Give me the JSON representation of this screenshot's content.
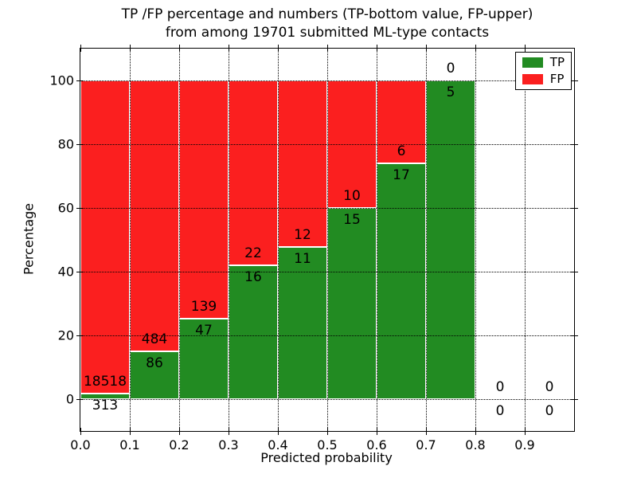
{
  "chart_data": {
    "type": "bar",
    "stacked": true,
    "title_line1": "TP /FP percentage and numbers (TP-bottom value, FP-upper)",
    "title_line2": "from among 19701 submitted ML-type contacts",
    "total_contacts": 19701,
    "xlabel": "Predicted probability",
    "ylabel": "Percentage",
    "x_ticks": [
      "0.0",
      "0.1",
      "0.2",
      "0.3",
      "0.4",
      "0.5",
      "0.6",
      "0.7",
      "0.8",
      "0.9"
    ],
    "y_ticks": [
      0,
      20,
      40,
      60,
      80,
      100
    ],
    "xlim": [
      0.0,
      1.0
    ],
    "ylim": [
      -10,
      110
    ],
    "grid_style": "dotted",
    "legend_position": "upper right",
    "legend": [
      {
        "label": "TP",
        "color": "#228b22"
      },
      {
        "label": "FP",
        "color": "#fb1f1f"
      }
    ],
    "bins": [
      {
        "x_start": 0.0,
        "x_end": 0.1,
        "tp": 313,
        "fp": 18518,
        "tp_pct": 1.66
      },
      {
        "x_start": 0.1,
        "x_end": 0.2,
        "tp": 86,
        "fp": 484,
        "tp_pct": 15.09
      },
      {
        "x_start": 0.2,
        "x_end": 0.3,
        "tp": 47,
        "fp": 139,
        "tp_pct": 25.27
      },
      {
        "x_start": 0.3,
        "x_end": 0.4,
        "tp": 16,
        "fp": 22,
        "tp_pct": 42.11
      },
      {
        "x_start": 0.4,
        "x_end": 0.5,
        "tp": 11,
        "fp": 12,
        "tp_pct": 47.83
      },
      {
        "x_start": 0.5,
        "x_end": 0.6,
        "tp": 15,
        "fp": 10,
        "tp_pct": 60.0
      },
      {
        "x_start": 0.6,
        "x_end": 0.7,
        "tp": 17,
        "fp": 6,
        "tp_pct": 73.91
      },
      {
        "x_start": 0.7,
        "x_end": 0.8,
        "tp": 5,
        "fp": 0,
        "tp_pct": 100.0
      },
      {
        "x_start": 0.8,
        "x_end": 0.9,
        "tp": 0,
        "fp": 0,
        "tp_pct": null
      },
      {
        "x_start": 0.9,
        "x_end": 1.0,
        "tp": 0,
        "fp": 0,
        "tp_pct": null
      }
    ]
  }
}
